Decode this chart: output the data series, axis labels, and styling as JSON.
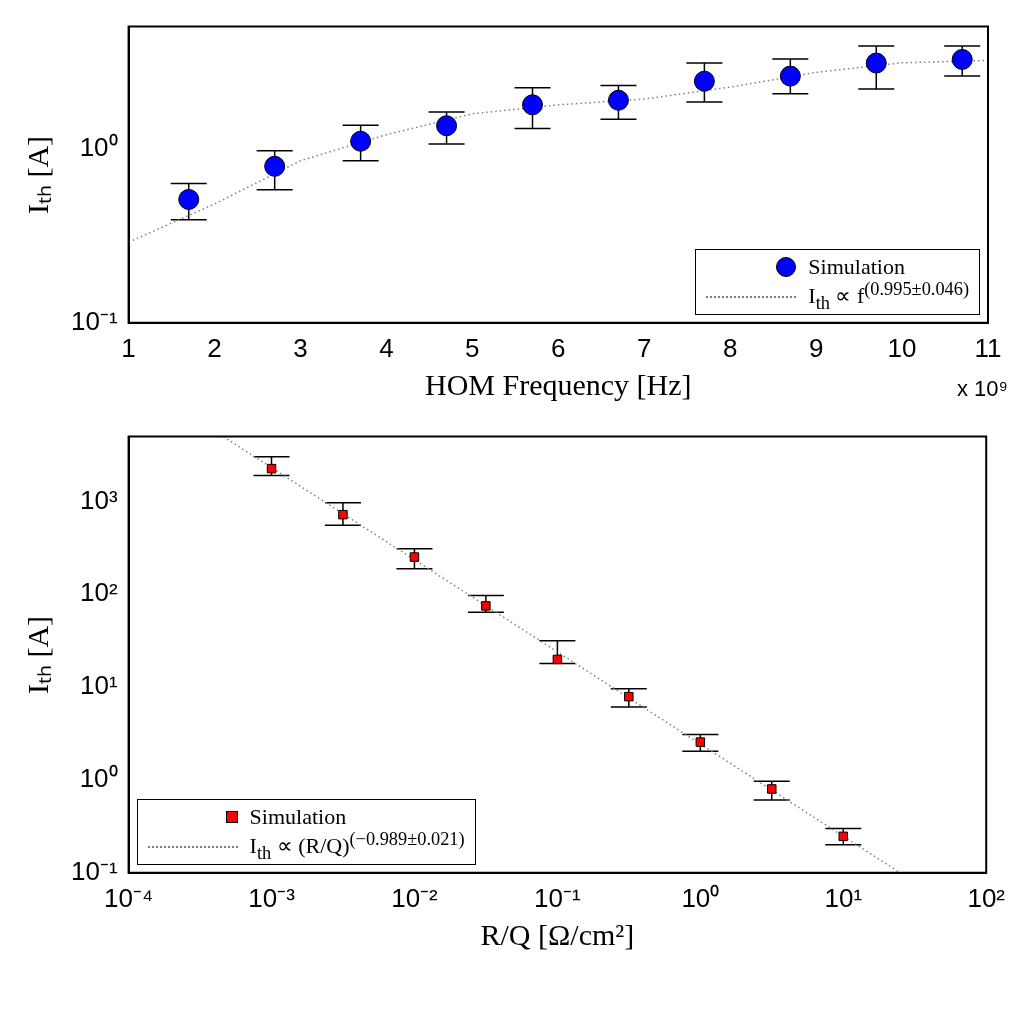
{
  "chart_data": [
    {
      "type": "scatter",
      "xlabel": "HOM Frequency [Hz]",
      "ylabel": "Iₜₕ [A]",
      "log": "y",
      "legend": "bottom right",
      "xlim": [
        1,
        11
      ],
      "xticks": [
        1,
        2,
        3,
        4,
        5,
        6,
        7,
        8,
        9,
        10,
        11
      ],
      "ylim": [
        0.1,
        5
      ],
      "yticks": [
        {
          "value": 0.1,
          "label": "10⁻¹"
        },
        {
          "value": 1,
          "label": "10⁰"
        }
      ],
      "annotations": [
        "x 10⁹"
      ],
      "series": [
        {
          "name": "Simulation",
          "type": "scatter",
          "marker": "circle",
          "color": "#0000ff",
          "x": [
            1.7,
            2.7,
            3.7,
            4.7,
            5.7,
            6.7,
            7.7,
            8.7,
            9.7,
            10.7
          ],
          "values": [
            0.51,
            0.79,
            1.1,
            1.35,
            1.78,
            1.89,
            2.43,
            2.6,
            3.09,
            3.24
          ],
          "errors": [
            [
              0.39,
              0.63
            ],
            [
              0.58,
              0.97
            ],
            [
              0.85,
              1.36
            ],
            [
              1.06,
              1.62
            ],
            [
              1.3,
              2.23
            ],
            [
              1.47,
              2.3
            ],
            [
              1.85,
              3.09
            ],
            [
              2.06,
              3.26
            ],
            [
              2.19,
              3.87
            ],
            [
              2.6,
              3.87
            ]
          ]
        },
        {
          "name": "I$_{th}$ ∝ f$^{(0.995±0.046)}$",
          "type": "line",
          "marker": "none",
          "line_style": "dotted",
          "color": "#808080",
          "x": [
            1,
            2,
            3,
            4,
            5,
            6,
            7,
            8,
            9,
            10,
            11
          ],
          "values": [
            0.29,
            0.48,
            0.85,
            1.2,
            1.58,
            1.78,
            1.92,
            2.25,
            2.73,
            3.1,
            3.2
          ]
        }
      ]
    },
    {
      "type": "scatter",
      "xlabel": "R/Q [Ω/cm²]",
      "ylabel": "Iₜₕ [A]",
      "log": "xy",
      "legend": "bottom left",
      "xlim": [
        0.0001,
        100
      ],
      "xticks": [
        {
          "value": 0.0001,
          "label": "10⁻⁴"
        },
        {
          "value": 0.001,
          "label": "10⁻³"
        },
        {
          "value": 0.01,
          "label": "10⁻²"
        },
        {
          "value": 0.1,
          "label": "10⁻¹"
        },
        {
          "value": 1,
          "label": "10⁰"
        },
        {
          "value": 10,
          "label": "10¹"
        },
        {
          "value": 100,
          "label": "10²"
        }
      ],
      "ylim": [
        0.1,
        5000
      ],
      "yticks": [
        {
          "value": 0.1,
          "label": "10⁻¹"
        },
        {
          "value": 1,
          "label": "10⁰"
        },
        {
          "value": 10,
          "label": "10¹"
        },
        {
          "value": 100,
          "label": "10²"
        },
        {
          "value": 1000,
          "label": "10³"
        }
      ],
      "series": [
        {
          "name": "Simulation",
          "type": "scatter",
          "marker": "square",
          "color": "#ff0000",
          "x": [
            0.001,
            0.00316,
            0.01,
            0.0316,
            0.1,
            0.316,
            1,
            3.16,
            10
          ],
          "values": [
            2260,
            721,
            252,
            75,
            19.9,
            7.9,
            2.56,
            0.8,
            0.247
          ],
          "errors": [
            [
              1910,
              3040
            ],
            [
              556,
              970
            ],
            [
              188,
              309
            ],
            [
              64,
              97
            ],
            [
              18,
              31.7
            ],
            [
              6.1,
              9.6
            ],
            [
              2.04,
              3.08
            ],
            [
              0.61,
              0.97
            ],
            [
              0.2,
              0.3
            ]
          ]
        },
        {
          "name": "I$_{th}$ ∝ (R/Q)$^{(−0.989±0.021)}$",
          "type": "line",
          "marker": "none",
          "line_style": "dotted",
          "color": "#808080",
          "x": [
            0.00046,
            25
          ],
          "values": [
            5000,
            0.1
          ]
        }
      ]
    }
  ]
}
